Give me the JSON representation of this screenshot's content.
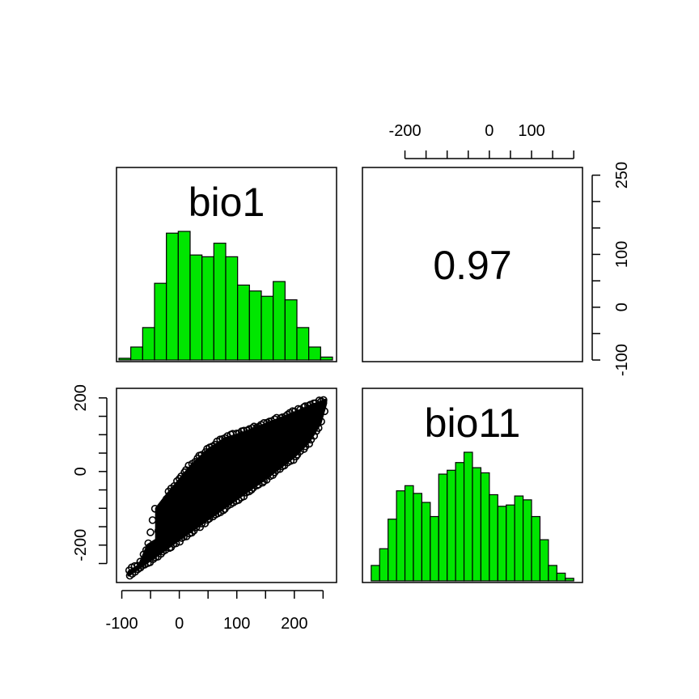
{
  "chart_data": [
    {
      "type": "bar",
      "panel": "bio1-histogram",
      "title": "bio1",
      "xrange": [
        -100,
        260
      ],
      "bins": [
        {
          "from": -100,
          "to": -80,
          "count": 3
        },
        {
          "from": -80,
          "to": -60,
          "count": 22
        },
        {
          "from": -60,
          "to": -40,
          "count": 55
        },
        {
          "from": -40,
          "to": -20,
          "count": 130
        },
        {
          "from": -20,
          "to": 0,
          "count": 215
        },
        {
          "from": 0,
          "to": 20,
          "count": 218
        },
        {
          "from": 20,
          "to": 40,
          "count": 178
        },
        {
          "from": 40,
          "to": 60,
          "count": 175
        },
        {
          "from": 60,
          "to": 80,
          "count": 198
        },
        {
          "from": 80,
          "to": 100,
          "count": 175
        },
        {
          "from": 100,
          "to": 120,
          "count": 127
        },
        {
          "from": 120,
          "to": 140,
          "count": 117
        },
        {
          "from": 140,
          "to": 160,
          "count": 108
        },
        {
          "from": 160,
          "to": 180,
          "count": 133
        },
        {
          "from": 180,
          "to": 200,
          "count": 102
        },
        {
          "from": 200,
          "to": 220,
          "count": 55
        },
        {
          "from": 220,
          "to": 240,
          "count": 22
        },
        {
          "from": 240,
          "to": 260,
          "count": 5
        }
      ],
      "bar_color": "#00e600"
    },
    {
      "type": "table",
      "panel": "correlation",
      "value": "0.97"
    },
    {
      "type": "scatter",
      "panel": "bio1-vs-bio11",
      "x_variable": "bio1",
      "y_variable": "bio11",
      "x_ticks": [
        "-100",
        "0",
        "100",
        "200"
      ],
      "y_ticks": [
        "-200",
        "0",
        "200"
      ],
      "xlim": [
        -105,
        265
      ],
      "ylim": [
        -295,
        215
      ],
      "cloud_lower_edge": [
        [
          -88,
          -282
        ],
        [
          -40,
          -230
        ],
        [
          0,
          -185
        ],
        [
          50,
          -130
        ],
        [
          100,
          -75
        ],
        [
          150,
          -20
        ],
        [
          200,
          40
        ],
        [
          225,
          80
        ],
        [
          245,
          130
        ],
        [
          255,
          185
        ]
      ],
      "cloud_upper_edge": [
        [
          255,
          195
        ],
        [
          230,
          180
        ],
        [
          200,
          160
        ],
        [
          160,
          135
        ],
        [
          120,
          110
        ],
        [
          80,
          90
        ],
        [
          50,
          60
        ],
        [
          20,
          15
        ],
        [
          -20,
          -60
        ],
        [
          -40,
          -100
        ],
        [
          -40,
          -185
        ],
        [
          -55,
          -200
        ],
        [
          -70,
          -255
        ],
        [
          -88,
          -272
        ]
      ],
      "marker": "open-circle",
      "color": "#000000"
    },
    {
      "type": "bar",
      "panel": "bio11-histogram",
      "title": "bio11",
      "xrange": [
        -295,
        215
      ],
      "bins": [
        {
          "from": -280,
          "to": -260,
          "count": 12
        },
        {
          "from": -260,
          "to": -240,
          "count": 25
        },
        {
          "from": -240,
          "to": -220,
          "count": 48
        },
        {
          "from": -220,
          "to": -200,
          "count": 70
        },
        {
          "from": -200,
          "to": -180,
          "count": 74
        },
        {
          "from": -180,
          "to": -160,
          "count": 68
        },
        {
          "from": -160,
          "to": -140,
          "count": 61
        },
        {
          "from": -140,
          "to": -120,
          "count": 50
        },
        {
          "from": -120,
          "to": -100,
          "count": 83
        },
        {
          "from": -100,
          "to": -80,
          "count": 86
        },
        {
          "from": -80,
          "to": -60,
          "count": 92
        },
        {
          "from": -60,
          "to": -40,
          "count": 100
        },
        {
          "from": -40,
          "to": -20,
          "count": 88
        },
        {
          "from": -20,
          "to": 0,
          "count": 84
        },
        {
          "from": 0,
          "to": 20,
          "count": 67
        },
        {
          "from": 20,
          "to": 40,
          "count": 58
        },
        {
          "from": 40,
          "to": 60,
          "count": 59
        },
        {
          "from": 60,
          "to": 80,
          "count": 66
        },
        {
          "from": 80,
          "to": 100,
          "count": 63
        },
        {
          "from": 100,
          "to": 120,
          "count": 50
        },
        {
          "from": 120,
          "to": 140,
          "count": 32
        },
        {
          "from": 140,
          "to": 160,
          "count": 12
        },
        {
          "from": 160,
          "to": 180,
          "count": 6
        },
        {
          "from": 180,
          "to": 200,
          "count": 2
        }
      ],
      "bar_color": "#00e600"
    }
  ],
  "axes": {
    "bottom_ticks": [
      "-100",
      "0",
      "100",
      "200"
    ],
    "top_ticks": [
      "-200",
      "0",
      "100"
    ],
    "left_ticks": [
      "-200",
      "0",
      "200"
    ],
    "right_ticks": [
      "-100",
      "0",
      "100",
      "250"
    ]
  }
}
